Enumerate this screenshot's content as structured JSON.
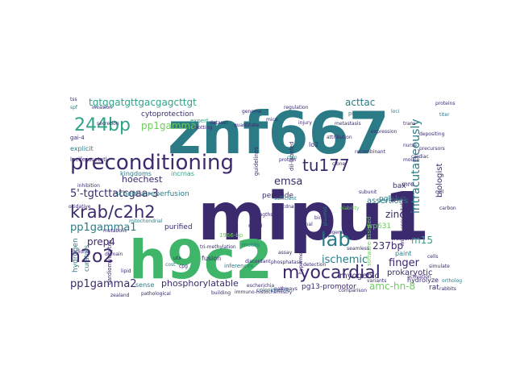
{
  "words": [
    {
      "text": "mipu1",
      "color": "#3b2a6e"
    },
    {
      "text": "znf667",
      "color": "#2a7b86"
    },
    {
      "text": "h9c2",
      "color": "#3fb56a"
    },
    {
      "text": "preconditioning",
      "color": "#3b2a6e"
    },
    {
      "text": "myocardial",
      "color": "#3b2a6e"
    },
    {
      "text": "244bp",
      "color": "#2fa487"
    },
    {
      "text": "krab/c2h2",
      "color": "#3b2a6e"
    },
    {
      "text": "lab",
      "color": "#2a7b86"
    },
    {
      "text": "h2o2",
      "color": "#3b2a6e"
    },
    {
      "text": "tu177",
      "color": "#3b2a6e"
    },
    {
      "text": "intracutaneously",
      "color": "#2a7b86"
    },
    {
      "text": "tgtggatgttgacgagcttgt",
      "color": "#2fa487"
    },
    {
      "text": "pp1gamma",
      "color": "#6ccd5a"
    },
    {
      "text": "cytoprotection",
      "color": "#3b2a6e"
    },
    {
      "text": "acttac",
      "color": "#2a7b86"
    },
    {
      "text": "hoechest",
      "color": "#3b2a6e"
    },
    {
      "text": "ischemic",
      "color": "#2a7b86"
    },
    {
      "text": "5'-tgtcttatcgaa-3",
      "color": "#3b2a6e"
    },
    {
      "text": "emsa",
      "color": "#3b2a6e"
    },
    {
      "text": "pp1gamma1",
      "color": "#2a7b86"
    },
    {
      "text": "pp1gamma2",
      "color": "#3b2a6e"
    },
    {
      "text": "prep4",
      "color": "#3b2a6e"
    },
    {
      "text": "zinc",
      "color": "#3b2a6e"
    },
    {
      "text": "finger",
      "color": "#3b2a6e"
    },
    {
      "text": "237bp",
      "color": "#3b2a6e"
    },
    {
      "text": "m15",
      "color": "#2fa487"
    },
    {
      "text": "amc-hn-8",
      "color": "#6ccd5a"
    },
    {
      "text": "biologist",
      "color": "#3b2a6e"
    },
    {
      "text": "phosphorylatable",
      "color": "#3b2a6e"
    },
    {
      "text": "ischemia-reperfusion",
      "color": "#2a7b86"
    },
    {
      "text": "purified",
      "color": "#3b2a6e"
    },
    {
      "text": "assertions",
      "color": "#2a7b86"
    },
    {
      "text": "myogenic",
      "color": "#3b2a6e"
    },
    {
      "text": "prokaryotic",
      "color": "#3b2a6e"
    },
    {
      "text": "pg13-promotor",
      "color": "#3b2a6e"
    },
    {
      "text": "pg5-luc",
      "color": "#2a7b86"
    },
    {
      "text": "peroxide",
      "color": "#3b2a6e"
    },
    {
      "text": "bax",
      "color": "#3b2a6e"
    },
    {
      "text": "hydrolyze",
      "color": "#3b2a6e"
    },
    {
      "text": "kingdoms",
      "color": "#2a7b86"
    },
    {
      "text": "incrnas",
      "color": "#2fa487"
    },
    {
      "text": "fusion",
      "color": "#3b2a6e"
    },
    {
      "text": "paint",
      "color": "#2a7b86"
    },
    {
      "text": "hydrogen",
      "color": "#2a7b86"
    },
    {
      "text": "curators",
      "color": "#2a7b86"
    },
    {
      "text": "sense",
      "color": "#2a7b86"
    },
    {
      "text": "rat",
      "color": "#3b2a6e"
    },
    {
      "text": "colorimetric",
      "color": "#2a7b86"
    },
    {
      "text": "expert",
      "color": "#2fa487"
    },
    {
      "text": "explicit",
      "color": "#2a7b86"
    },
    {
      "text": "gai-4",
      "color": "#3b2a6e"
    },
    {
      "text": "lo2",
      "color": "#3b2a6e"
    },
    {
      "text": "mre",
      "color": "#3b2a6e"
    },
    {
      "text": "western",
      "color": "#3b2a6e"
    },
    {
      "text": "cardiomyocytes",
      "color": "#3b2a6e"
    },
    {
      "text": "1966-bp",
      "color": "#6ccd5a"
    },
    {
      "text": "luciferasetetl",
      "color": "#3b2a6e"
    },
    {
      "text": "oxidative",
      "color": "#3b2a6e"
    },
    {
      "text": "cre-ii",
      "color": "#3b2a6e"
    },
    {
      "text": "inferences",
      "color": "#2a7b86"
    },
    {
      "text": "motifs",
      "color": "#2a7b86"
    },
    {
      "text": "wp631",
      "color": "#6ccd5a"
    },
    {
      "text": "blotting",
      "color": "#3b2a6e"
    },
    {
      "text": "immuno-histochemistry",
      "color": "#3b2a6e"
    },
    {
      "text": "software-assisted",
      "color": "#6ccd5a"
    },
    {
      "text": "hypermethylation",
      "color": "#3b2a6e"
    },
    {
      "text": "immunoprecipitation",
      "color": "#3b2a6e"
    },
    {
      "text": "pipeline",
      "color": "#2a7b86"
    },
    {
      "text": "guidelines",
      "color": "#3b2a6e"
    },
    {
      "text": "dil-labeled",
      "color": "#3b2a6e"
    },
    {
      "text": "rabbits",
      "color": "#3b2a6e"
    },
    {
      "text": "zealand",
      "color": "#3b2a6e"
    },
    {
      "text": "cost",
      "color": "#2a7b86"
    },
    {
      "text": "cpg",
      "color": "#3b2a6e"
    },
    {
      "text": "quantitate",
      "color": "#3b2a6e"
    },
    {
      "text": "strengths",
      "color": "#3b2a6e"
    },
    {
      "text": "plasmid",
      "color": "#2a7b86"
    },
    {
      "text": "cdna",
      "color": "#3b2a6e"
    },
    {
      "text": "chip",
      "color": "#2fa487"
    },
    {
      "text": "spf",
      "color": "#2a7b86"
    },
    {
      "text": "tss",
      "color": "#3b2a6e"
    },
    {
      "text": "titer",
      "color": "#2a7b86"
    },
    {
      "text": "nurse",
      "color": "#3b2a6e"
    },
    {
      "text": "viability",
      "color": "#6ccd5a"
    },
    {
      "text": "utx",
      "color": "#3b2a6e"
    },
    {
      "text": "escherichia",
      "color": "#3b2a6e"
    },
    {
      "text": "seamless",
      "color": "#3b2a6e"
    },
    {
      "text": "trans",
      "color": "#3b2a6e"
    },
    {
      "text": "loci",
      "color": "#2a7b86"
    },
    {
      "text": "invasion",
      "color": "#3b2a6e"
    },
    {
      "text": "discordant",
      "color": "#3b2a6e"
    },
    {
      "text": "ortholog",
      "color": "#2a7b86"
    },
    {
      "text": "simulate",
      "color": "#3b2a6e"
    },
    {
      "text": "lipid",
      "color": "#3b2a6e"
    },
    {
      "text": "phylogenetic",
      "color": "#3b2a6e"
    },
    {
      "text": "comparison",
      "color": "#3b2a6e"
    },
    {
      "text": "sufficient",
      "color": "#2a7b86"
    },
    {
      "text": "depositing",
      "color": "#3b2a6e"
    },
    {
      "text": "precursors",
      "color": "#3b2a6e"
    },
    {
      "text": "carbon",
      "color": "#3b2a6e"
    },
    {
      "text": "cardiac",
      "color": "#3b2a6e"
    },
    {
      "text": "proteins",
      "color": "#3b2a6e"
    },
    {
      "text": "injury",
      "color": "#3b2a6e"
    },
    {
      "text": "attribution",
      "color": "#3b2a6e"
    },
    {
      "text": "building",
      "color": "#3b2a6e"
    },
    {
      "text": "pathological",
      "color": "#3b2a6e"
    },
    {
      "text": "pathways",
      "color": "#3b2a6e"
    },
    {
      "text": "metastasis",
      "color": "#3b2a6e"
    },
    {
      "text": "secretion",
      "color": "#3b2a6e"
    },
    {
      "text": "tri-methylation",
      "color": "#3b2a6e"
    },
    {
      "text": "phosphatase",
      "color": "#3b2a6e"
    },
    {
      "text": "inhibition",
      "color": "#3b2a6e"
    },
    {
      "text": "mitochondrial",
      "color": "#2a7b86"
    },
    {
      "text": "binding",
      "color": "#3b2a6e"
    },
    {
      "text": "genome",
      "color": "#3b2a6e"
    },
    {
      "text": "detection",
      "color": "#3b2a6e"
    },
    {
      "text": "regulation",
      "color": "#3b2a6e"
    },
    {
      "text": "metabolic",
      "color": "#3b2a6e"
    },
    {
      "text": "expression",
      "color": "#3b2a6e"
    },
    {
      "text": "recombinant",
      "color": "#3b2a6e"
    },
    {
      "text": "activation",
      "color": "#3b2a6e"
    },
    {
      "text": "domain",
      "color": "#3b2a6e"
    },
    {
      "text": "subunit",
      "color": "#3b2a6e"
    },
    {
      "text": "protein",
      "color": "#3b2a6e"
    },
    {
      "text": "variants",
      "color": "#3b2a6e"
    },
    {
      "text": "cells",
      "color": "#3b2a6e"
    },
    {
      "text": "assay",
      "color": "#3b2a6e"
    },
    {
      "text": "regions",
      "color": "#3b2a6e"
    },
    {
      "text": "dataset",
      "color": "#3b2a6e"
    },
    {
      "text": "signal",
      "color": "#3b2a6e"
    },
    {
      "text": "clone",
      "color": "#3b2a6e"
    },
    {
      "text": "mice",
      "color": "#3b2a6e"
    },
    {
      "text": "mouse",
      "color": "#3b2a6e"
    },
    {
      "text": "cell",
      "color": "#3b2a6e"
    }
  ]
}
